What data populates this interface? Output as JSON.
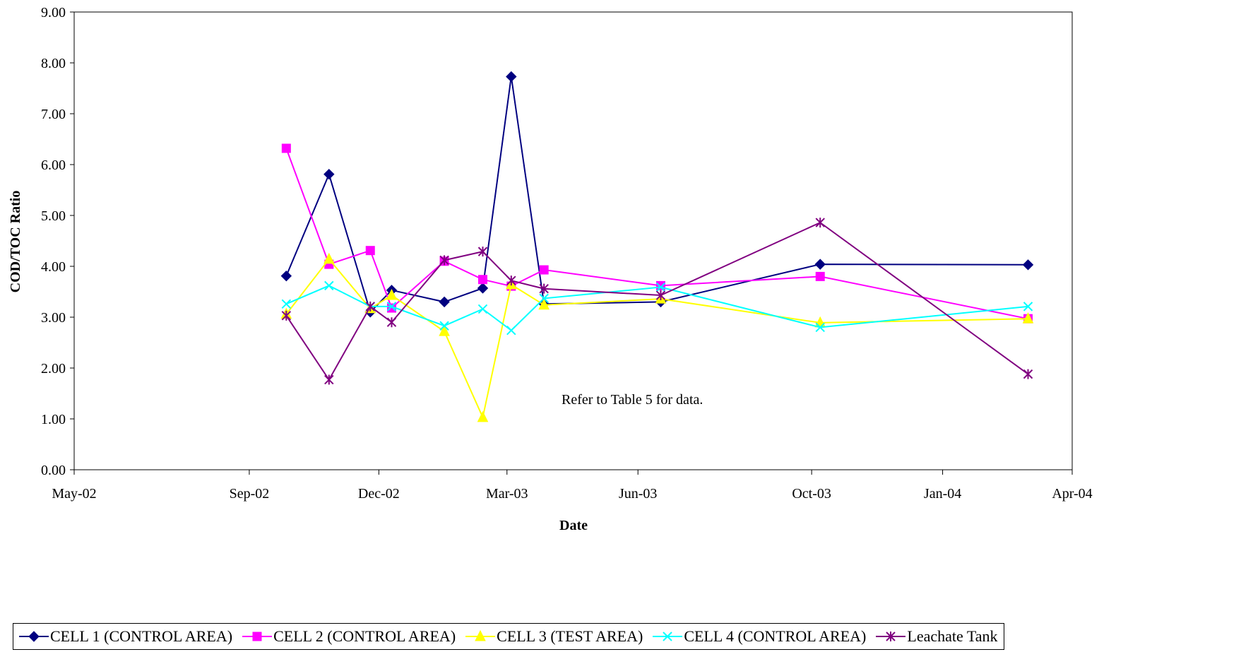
{
  "chart_data": {
    "type": "line",
    "title": "",
    "xlabel": "Date",
    "ylabel": "COD/TOC Ratio",
    "annotation": "Refer to Table 5 for data.",
    "x_axis": {
      "type": "date",
      "range": [
        "2002-05-01",
        "2004-04-01"
      ],
      "ticks": [
        {
          "date": "2002-05-01",
          "label": "May-02"
        },
        {
          "date": "2002-09-01",
          "label": "Sep-02"
        },
        {
          "date": "2002-12-01",
          "label": "Dec-02"
        },
        {
          "date": "2003-03-01",
          "label": "Mar-03"
        },
        {
          "date": "2003-06-01",
          "label": "Jun-03"
        },
        {
          "date": "2003-10-01",
          "label": "Oct-03"
        },
        {
          "date": "2004-01-01",
          "label": "Jan-04"
        },
        {
          "date": "2004-04-01",
          "label": "Apr-04"
        }
      ]
    },
    "y_axis": {
      "range": [
        0,
        9
      ],
      "ticks": [
        "0.00",
        "1.00",
        "2.00",
        "3.00",
        "4.00",
        "5.00",
        "6.00",
        "7.00",
        "8.00",
        "9.00"
      ]
    },
    "grid": false,
    "legend_position": "bottom",
    "series": [
      {
        "name": "CELL 1 (CONTROL AREA)",
        "color": "#000080",
        "marker": "diamond",
        "points": [
          {
            "x": "2002-09-27",
            "y": 3.81
          },
          {
            "x": "2002-10-27",
            "y": 5.81
          },
          {
            "x": "2002-11-25",
            "y": 3.1
          },
          {
            "x": "2002-12-10",
            "y": 3.53
          },
          {
            "x": "2003-01-16",
            "y": 3.3
          },
          {
            "x": "2003-02-12",
            "y": 3.57
          },
          {
            "x": "2003-03-04",
            "y": 7.73
          },
          {
            "x": "2003-03-27",
            "y": 3.26
          },
          {
            "x": "2003-06-17",
            "y": 3.3
          },
          {
            "x": "2003-10-07",
            "y": 4.04
          },
          {
            "x": "2004-03-01",
            "y": 4.03
          }
        ]
      },
      {
        "name": "CELL 2 (CONTROL AREA)",
        "color": "#FF00FF",
        "marker": "square",
        "points": [
          {
            "x": "2002-09-27",
            "y": 6.32
          },
          {
            "x": "2002-10-27",
            "y": 4.04
          },
          {
            "x": "2002-11-25",
            "y": 4.31
          },
          {
            "x": "2002-12-10",
            "y": 3.18
          },
          {
            "x": "2003-01-16",
            "y": 4.1
          },
          {
            "x": "2003-02-12",
            "y": 3.74
          },
          {
            "x": "2003-03-04",
            "y": 3.61
          },
          {
            "x": "2003-03-27",
            "y": 3.93
          },
          {
            "x": "2003-06-17",
            "y": 3.62
          },
          {
            "x": "2003-10-07",
            "y": 3.8
          },
          {
            "x": "2004-03-01",
            "y": 2.97
          }
        ]
      },
      {
        "name": "CELL 3 (TEST AREA)",
        "color": "#FFFF00",
        "marker": "triangle",
        "points": [
          {
            "x": "2002-09-27",
            "y": 3.06
          },
          {
            "x": "2002-10-27",
            "y": 4.14
          },
          {
            "x": "2002-11-25",
            "y": 3.17
          },
          {
            "x": "2002-12-10",
            "y": 3.43
          },
          {
            "x": "2003-01-16",
            "y": 2.72
          },
          {
            "x": "2003-02-12",
            "y": 1.03
          },
          {
            "x": "2003-03-04",
            "y": 3.64
          },
          {
            "x": "2003-03-27",
            "y": 3.24
          },
          {
            "x": "2003-06-17",
            "y": 3.36
          },
          {
            "x": "2003-10-07",
            "y": 2.89
          },
          {
            "x": "2004-03-01",
            "y": 2.97
          }
        ]
      },
      {
        "name": "CELL 4 (CONTROL AREA)",
        "color": "#00FFFF",
        "marker": "x",
        "points": [
          {
            "x": "2002-09-27",
            "y": 3.26
          },
          {
            "x": "2002-10-27",
            "y": 3.62
          },
          {
            "x": "2002-11-25",
            "y": 3.21
          },
          {
            "x": "2002-12-10",
            "y": 3.21
          },
          {
            "x": "2003-01-16",
            "y": 2.83
          },
          {
            "x": "2003-02-12",
            "y": 3.16
          },
          {
            "x": "2003-03-04",
            "y": 2.74
          },
          {
            "x": "2003-03-27",
            "y": 3.37
          },
          {
            "x": "2003-06-17",
            "y": 3.59
          },
          {
            "x": "2003-10-07",
            "y": 2.8
          },
          {
            "x": "2004-03-01",
            "y": 3.21
          }
        ]
      },
      {
        "name": "Leachate Tank",
        "color": "#800080",
        "marker": "star",
        "points": [
          {
            "x": "2002-09-27",
            "y": 3.03
          },
          {
            "x": "2002-10-27",
            "y": 1.77
          },
          {
            "x": "2002-11-25",
            "y": 3.21
          },
          {
            "x": "2002-12-10",
            "y": 2.9
          },
          {
            "x": "2003-01-16",
            "y": 4.12
          },
          {
            "x": "2003-02-12",
            "y": 4.29
          },
          {
            "x": "2003-03-04",
            "y": 3.72
          },
          {
            "x": "2003-03-27",
            "y": 3.56
          },
          {
            "x": "2003-06-17",
            "y": 3.43
          },
          {
            "x": "2003-10-07",
            "y": 4.86
          },
          {
            "x": "2004-03-01",
            "y": 1.88
          }
        ]
      }
    ]
  }
}
